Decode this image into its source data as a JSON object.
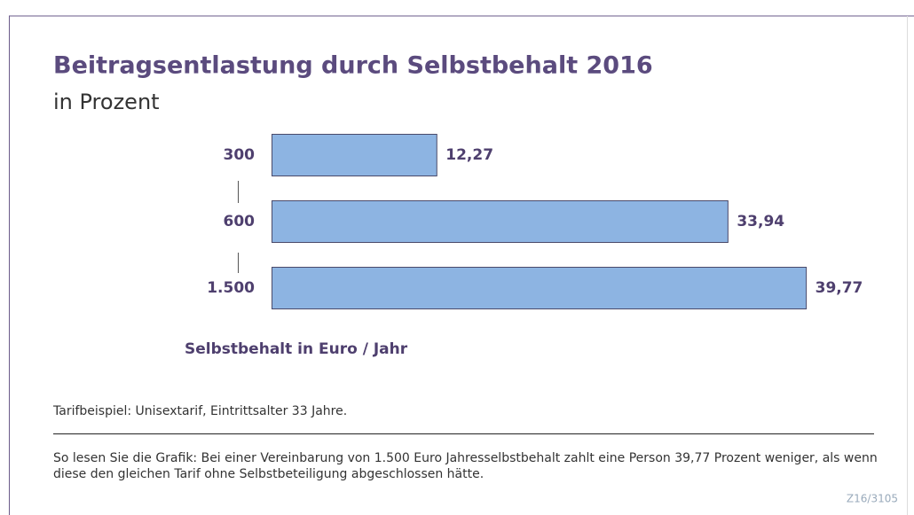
{
  "chart_data": {
    "type": "bar",
    "orientation": "horizontal",
    "title": "Beitragsentlastung durch Selbstbehalt 2016",
    "subtitle": "in Prozent",
    "categories": [
      "300",
      "600",
      "1.500"
    ],
    "values": [
      12.27,
      33.94,
      39.77
    ],
    "value_labels": [
      "12,27",
      "33,94",
      "39,77"
    ],
    "color": "#8db4e2",
    "y_label": "Selbstbehalt in Euro / Jahr",
    "note": "Tarifbeispiel: Unisextarif, Eintrittsalter 33 Jahre.",
    "explanation": "So lesen Sie die Grafik: Bei einer Vereinbarung von 1.500 Euro Jahresselbstbehalt zahlt eine Person 39,77 Prozent weniger, als wenn diese den gleichen Tarif ohne Selbstbeteiligung abgeschlossen hätte.",
    "source": "Z16/3105"
  }
}
